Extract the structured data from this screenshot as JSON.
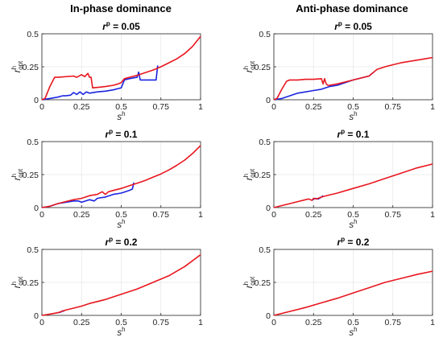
{
  "columns": [
    "In-phase dominance",
    "Anti-phase dominance"
  ],
  "panel_titles": [
    "r^p = 0.05",
    "r^p = 0.1",
    "r^p = 0.2"
  ],
  "axes": {
    "x_label": "s^h",
    "y_label": "r^h_opt",
    "x_ticks": [
      "0",
      "0.25",
      "0.5",
      "0.75",
      "1"
    ],
    "y_ticks": [
      "0",
      "0.25",
      "0.5"
    ]
  },
  "colors": {
    "red_series": "#e8161e",
    "blue_series": "#1a24e0",
    "grid": "#e6e6e6",
    "axis": "#262626"
  },
  "chart_data": [
    {
      "type": "line",
      "column": "In-phase dominance",
      "title": "r^p = 0.05",
      "xlabel": "s^h",
      "ylabel": "r^h_opt",
      "xlim": [
        0,
        1
      ],
      "ylim": [
        0,
        0.5
      ],
      "grid": true,
      "series": [
        {
          "color": "#e8161e",
          "x": [
            0,
            0.02,
            0.05,
            0.08,
            0.1,
            0.2,
            0.22,
            0.25,
            0.27,
            0.29,
            0.3,
            0.31,
            0.32,
            0.36,
            0.4,
            0.45,
            0.48,
            0.5,
            0.52,
            0.55,
            0.6,
            0.65,
            0.7,
            0.75,
            0.8,
            0.85,
            0.9,
            0.95,
            1.0
          ],
          "y": [
            0,
            0.01,
            0.1,
            0.17,
            0.17,
            0.18,
            0.17,
            0.19,
            0.175,
            0.2,
            0.17,
            0.17,
            0.09,
            0.095,
            0.1,
            0.11,
            0.12,
            0.13,
            0.16,
            0.17,
            0.185,
            0.205,
            0.225,
            0.25,
            0.28,
            0.31,
            0.35,
            0.405,
            0.48
          ]
        },
        {
          "color": "#1a24e0",
          "x": [
            0,
            0.05,
            0.1,
            0.13,
            0.15,
            0.18,
            0.2,
            0.22,
            0.24,
            0.26,
            0.28,
            0.3,
            0.35,
            0.4,
            0.45,
            0.48,
            0.5,
            0.51,
            0.52,
            0.55,
            0.6,
            0.61,
            0.62,
            0.65,
            0.7,
            0.72,
            0.73
          ],
          "y": [
            0,
            0.01,
            0.02,
            0.03,
            0.03,
            0.035,
            0.055,
            0.04,
            0.06,
            0.04,
            0.06,
            0.05,
            0.06,
            0.065,
            0.075,
            0.085,
            0.09,
            0.12,
            0.15,
            0.16,
            0.17,
            0.21,
            0.15,
            0.15,
            0.15,
            0.15,
            0.26
          ]
        }
      ]
    },
    {
      "type": "line",
      "column": "Anti-phase dominance",
      "title": "r^p = 0.05",
      "xlabel": "s^h",
      "ylabel": "r^h_opt",
      "xlim": [
        0,
        1
      ],
      "ylim": [
        0,
        0.5
      ],
      "grid": true,
      "series": [
        {
          "color": "#e8161e",
          "x": [
            0,
            0.02,
            0.05,
            0.08,
            0.1,
            0.15,
            0.2,
            0.25,
            0.3,
            0.31,
            0.32,
            0.33,
            0.34,
            0.35,
            0.4,
            0.5,
            0.6,
            0.62,
            0.65,
            0.7,
            0.75,
            0.8,
            0.85,
            0.9,
            0.95,
            1.0
          ],
          "y": [
            0,
            0.01,
            0.08,
            0.14,
            0.15,
            0.15,
            0.155,
            0.155,
            0.16,
            0.12,
            0.16,
            0.12,
            0.11,
            0.11,
            0.12,
            0.15,
            0.18,
            0.2,
            0.23,
            0.25,
            0.265,
            0.28,
            0.29,
            0.3,
            0.31,
            0.32
          ]
        },
        {
          "color": "#1a24e0",
          "x": [
            0,
            0.05,
            0.1,
            0.15,
            0.2,
            0.25,
            0.3,
            0.35,
            0.4,
            0.5,
            0.6,
            0.62,
            0.63
          ],
          "y": [
            0,
            0.01,
            0.03,
            0.05,
            0.06,
            0.07,
            0.08,
            0.1,
            0.11,
            0.15,
            0.18,
            0.2,
            0.21
          ]
        }
      ]
    },
    {
      "type": "line",
      "column": "In-phase dominance",
      "title": "r^p = 0.1",
      "xlabel": "s^h",
      "ylabel": "r^h_opt",
      "xlim": [
        0,
        1
      ],
      "ylim": [
        0,
        0.5
      ],
      "grid": true,
      "series": [
        {
          "color": "#e8161e",
          "x": [
            0,
            0.05,
            0.1,
            0.15,
            0.2,
            0.25,
            0.3,
            0.35,
            0.38,
            0.4,
            0.42,
            0.45,
            0.5,
            0.55,
            0.6,
            0.65,
            0.7,
            0.75,
            0.8,
            0.85,
            0.9,
            0.95,
            1.0
          ],
          "y": [
            0,
            0.01,
            0.03,
            0.045,
            0.06,
            0.07,
            0.09,
            0.1,
            0.12,
            0.1,
            0.12,
            0.13,
            0.145,
            0.165,
            0.185,
            0.205,
            0.23,
            0.255,
            0.285,
            0.32,
            0.36,
            0.41,
            0.47
          ]
        },
        {
          "color": "#1a24e0",
          "x": [
            0,
            0.05,
            0.1,
            0.15,
            0.2,
            0.23,
            0.25,
            0.3,
            0.33,
            0.35,
            0.4,
            0.45,
            0.5,
            0.55,
            0.57,
            0.58
          ],
          "y": [
            0,
            0.01,
            0.03,
            0.04,
            0.05,
            0.05,
            0.04,
            0.06,
            0.05,
            0.07,
            0.08,
            0.1,
            0.11,
            0.13,
            0.14,
            0.19
          ]
        }
      ]
    },
    {
      "type": "line",
      "column": "Anti-phase dominance",
      "title": "r^p = 0.1",
      "xlabel": "s^h",
      "ylabel": "r^h_opt",
      "xlim": [
        0,
        1
      ],
      "ylim": [
        0,
        0.5
      ],
      "grid": true,
      "series": [
        {
          "color": "#e8161e",
          "x": [
            0,
            0.05,
            0.1,
            0.15,
            0.2,
            0.22,
            0.24,
            0.25,
            0.27,
            0.3,
            0.35,
            0.4,
            0.5,
            0.6,
            0.7,
            0.8,
            0.9,
            1.0
          ],
          "y": [
            0,
            0.015,
            0.03,
            0.045,
            0.06,
            0.065,
            0.055,
            0.07,
            0.065,
            0.08,
            0.095,
            0.11,
            0.145,
            0.18,
            0.22,
            0.26,
            0.3,
            0.33
          ]
        },
        {
          "color": "#1a24e0",
          "x": [
            0.24,
            0.26,
            0.28,
            0.3,
            0.31
          ],
          "y": [
            0.055,
            0.07,
            0.065,
            0.08,
            0.09
          ]
        }
      ]
    },
    {
      "type": "line",
      "column": "In-phase dominance",
      "title": "r^p = 0.2",
      "xlabel": "s^h",
      "ylabel": "r^h_opt",
      "xlim": [
        0,
        1
      ],
      "ylim": [
        0,
        0.5
      ],
      "grid": true,
      "series": [
        {
          "color": "#e8161e",
          "x": [
            0,
            0.05,
            0.1,
            0.15,
            0.2,
            0.25,
            0.3,
            0.4,
            0.5,
            0.6,
            0.7,
            0.8,
            0.9,
            1.0
          ],
          "y": [
            0,
            0.01,
            0.02,
            0.04,
            0.055,
            0.07,
            0.09,
            0.12,
            0.16,
            0.2,
            0.25,
            0.3,
            0.37,
            0.46
          ]
        },
        {
          "color": "#1a24e0",
          "x": [
            0.1,
            0.12,
            0.13,
            0.14
          ],
          "y": [
            0.02,
            0.025,
            0.035,
            0.03
          ]
        }
      ]
    },
    {
      "type": "line",
      "column": "Anti-phase dominance",
      "title": "r^p = 0.2",
      "xlabel": "s^h",
      "ylabel": "r^h_opt",
      "xlim": [
        0,
        1
      ],
      "ylim": [
        0,
        0.5
      ],
      "grid": true,
      "series": [
        {
          "color": "#e8161e",
          "x": [
            0,
            0.1,
            0.2,
            0.3,
            0.4,
            0.5,
            0.6,
            0.7,
            0.8,
            0.9,
            1.0
          ],
          "y": [
            0,
            0.03,
            0.06,
            0.095,
            0.13,
            0.17,
            0.21,
            0.25,
            0.28,
            0.31,
            0.335
          ]
        }
      ]
    }
  ]
}
